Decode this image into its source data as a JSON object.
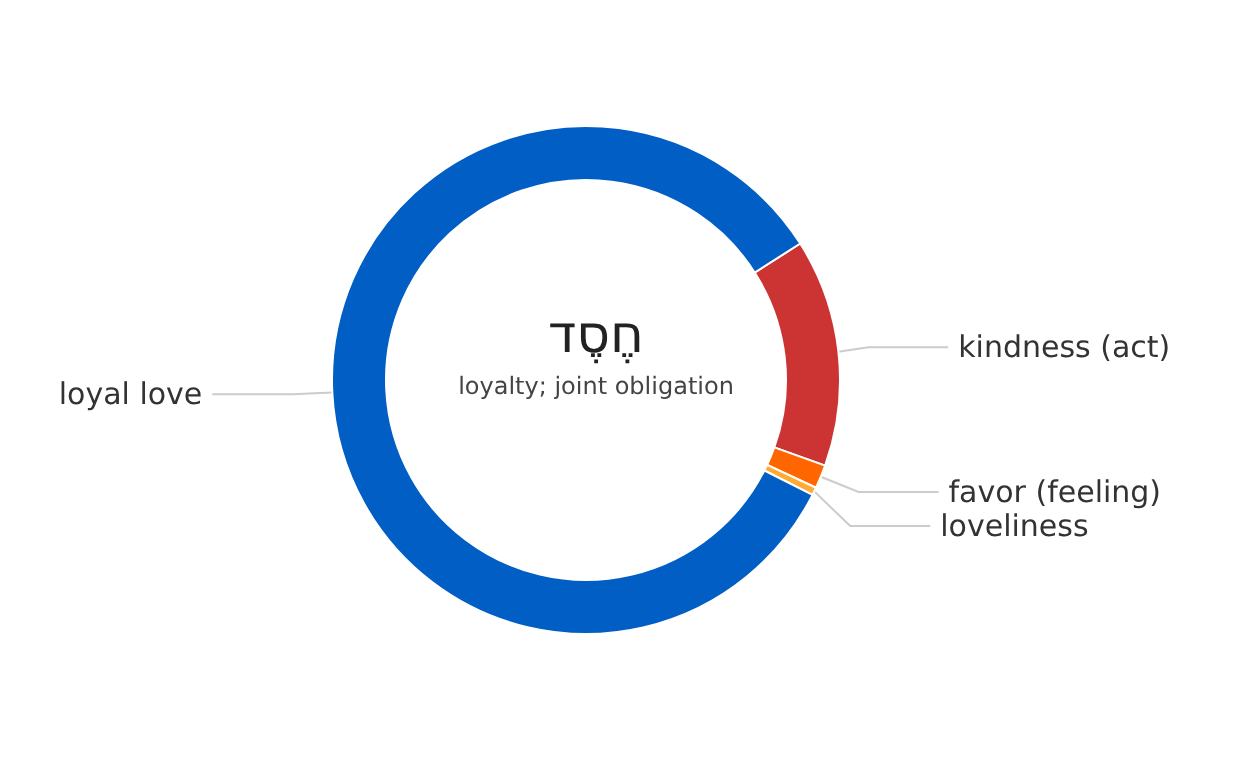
{
  "chart_data": {
    "type": "donut",
    "title": "חֶסֶד",
    "subtitle": "loyalty; joint obligation",
    "categories": [
      "kindness (act)",
      "favor (feeling)",
      "loveliness",
      "loyal love"
    ],
    "values": [
      14.5,
      1.5,
      0.5,
      83.5
    ],
    "colors": [
      "#cc3333",
      "#ff6600",
      "#ffaa33",
      "#005ec4"
    ],
    "legend": false
  }
}
